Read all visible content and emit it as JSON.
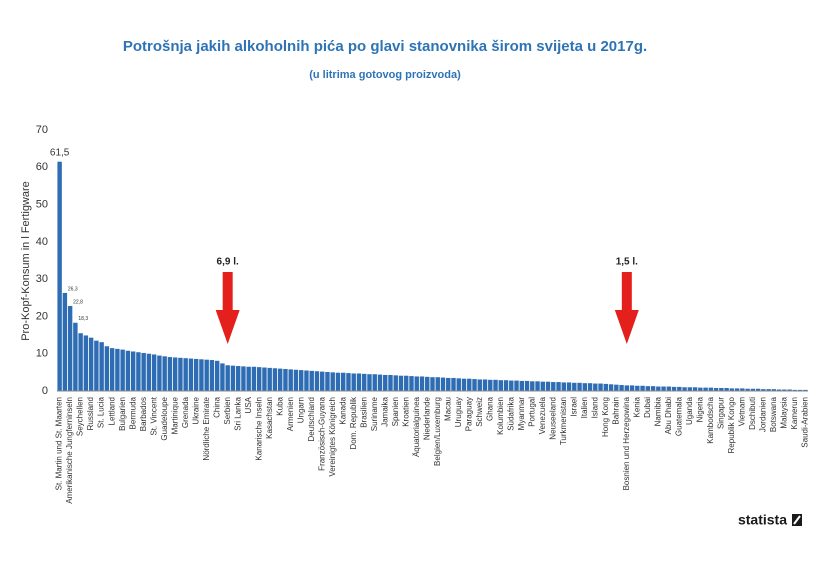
{
  "chart_data": {
    "type": "bar",
    "title": "Potrošnja jakih alkoholnih pića po glavi stanovnika širom svijeta u 2017g.",
    "subtitle": "(u litrima gotovog proizvoda)",
    "y_label": "Pro-Kopf-Konsum in l Fertigware",
    "source": "statista",
    "color": "#2e6db4",
    "ylim": [
      0,
      70
    ],
    "yticks": [
      0,
      10,
      20,
      30,
      40,
      50,
      60,
      70
    ],
    "grid": false,
    "categories": [
      "St. Martin und St. Maarten",
      null,
      "Amerikanische Jungferninseln",
      null,
      "Seychellen",
      null,
      "Russland",
      null,
      "St. Lucia",
      null,
      "Lettland",
      null,
      "Bulgarien",
      null,
      "Bermuda",
      null,
      "Barbados",
      null,
      "St. Vincent",
      null,
      "Guadeloupe",
      null,
      "Martinique",
      null,
      "Grenada",
      null,
      "Ukraine",
      null,
      "Nördliche Emirate",
      null,
      "China",
      null,
      "Serbien",
      null,
      "Sri Lanka",
      null,
      "USA",
      null,
      "Kanarische Inseln",
      null,
      "Kasachstan",
      null,
      "Kuba",
      null,
      "Armenien",
      null,
      "Ungarn",
      null,
      "Deutschland",
      null,
      "Französisch-Guyana",
      null,
      "Vereinigtes Königreich",
      null,
      "Kanada",
      null,
      "Dom. Republik",
      null,
      "Brasilien",
      null,
      "Suriname",
      null,
      "Jamaika",
      null,
      "Spanien",
      null,
      "Kroatien",
      null,
      "Äquatorialguinea",
      null,
      "Niederlande",
      null,
      "Belgien/Luxemburg",
      null,
      "Macau",
      null,
      "Uruguay",
      null,
      "Paraguay",
      null,
      "Schweiz",
      null,
      "Ghana",
      null,
      "Kolumbien",
      null,
      "Südafrika",
      null,
      "Myanmar",
      null,
      "Portugal",
      null,
      "Venezuela",
      null,
      "Neuseeland",
      null,
      "Turkmenistan",
      null,
      "Israel",
      null,
      "Italien",
      null,
      "Island",
      null,
      "Hong Kong",
      null,
      "Bahrain",
      null,
      "Bosnien und Herzegowina",
      null,
      "Kenia",
      null,
      "Dubai",
      null,
      "Namibia",
      null,
      "Abu Dhabi",
      null,
      "Guatemala",
      null,
      "Uganda",
      null,
      "Nigeria",
      null,
      "Kambodscha",
      null,
      "Singapur",
      null,
      "Republik Kongo",
      null,
      "Vietnam",
      null,
      "Dschibuti",
      null,
      "Jordanien",
      null,
      "Botswana",
      null,
      "Malaysia",
      null,
      "Kamerun",
      null,
      "Saudi-Arabien"
    ],
    "values": [
      61.5,
      26.3,
      22.8,
      18.3,
      15.5,
      14.9,
      14.3,
      13.5,
      13.1,
      12.0,
      11.5,
      11.3,
      11.1,
      10.8,
      10.6,
      10.4,
      10.2,
      10.0,
      9.8,
      9.5,
      9.3,
      9.1,
      9.0,
      8.9,
      8.8,
      8.7,
      8.6,
      8.5,
      8.4,
      8.3,
      8.1,
      7.4,
      6.9,
      6.8,
      6.7,
      6.6,
      6.5,
      6.5,
      6.4,
      6.3,
      6.2,
      6.1,
      6.0,
      5.9,
      5.8,
      5.7,
      5.6,
      5.5,
      5.4,
      5.3,
      5.2,
      5.1,
      5.0,
      4.9,
      4.9,
      4.8,
      4.7,
      4.7,
      4.6,
      4.5,
      4.5,
      4.4,
      4.3,
      4.3,
      4.2,
      4.1,
      4.1,
      4.0,
      3.9,
      3.9,
      3.8,
      3.7,
      3.7,
      3.6,
      3.5,
      3.5,
      3.4,
      3.3,
      3.3,
      3.2,
      3.1,
      3.1,
      3.0,
      3.0,
      2.9,
      2.9,
      2.8,
      2.8,
      2.7,
      2.7,
      2.6,
      2.6,
      2.5,
      2.5,
      2.4,
      2.4,
      2.3,
      2.3,
      2.2,
      2.2,
      2.1,
      2.1,
      2.0,
      2.0,
      1.9,
      1.8,
      1.7,
      1.6,
      1.5,
      1.5,
      1.4,
      1.4,
      1.3,
      1.3,
      1.2,
      1.2,
      1.2,
      1.1,
      1.1,
      1.0,
      1.0,
      1.0,
      0.9,
      0.9,
      0.9,
      0.8,
      0.8,
      0.8,
      0.7,
      0.7,
      0.7,
      0.6,
      0.6,
      0.6,
      0.5,
      0.5,
      0.5,
      0.4,
      0.4,
      0.4,
      0.3,
      0.3,
      0.3
    ],
    "value_labels": [
      "61,5",
      "26,3",
      "22,8",
      "18,3",
      null,
      null,
      null,
      null,
      null,
      null,
      null,
      null,
      null,
      null,
      null,
      null,
      null,
      null,
      null,
      null,
      null,
      null,
      null,
      null,
      null,
      null,
      null,
      null,
      null,
      null,
      null,
      null,
      null,
      null,
      null,
      null,
      null,
      null,
      null,
      null,
      null,
      null,
      null,
      null,
      null,
      null,
      null,
      null,
      null,
      null,
      null,
      null,
      null,
      null,
      null,
      null,
      null,
      null,
      null,
      null,
      null,
      null,
      null,
      null,
      null,
      null,
      null,
      null,
      null,
      null,
      null,
      null,
      null,
      null,
      null,
      null,
      null,
      null,
      null,
      null,
      null,
      null,
      null,
      null,
      null,
      null,
      null,
      null,
      null,
      null,
      null,
      null,
      null,
      null,
      null,
      null,
      null,
      null,
      null,
      null,
      null,
      null,
      null,
      null,
      null,
      null,
      null,
      null,
      null,
      null,
      null,
      null,
      null,
      null,
      null,
      null,
      null,
      null,
      null,
      null,
      null,
      null,
      null,
      null,
      null,
      null,
      null,
      null,
      null,
      null,
      null,
      null,
      null,
      null,
      null,
      null,
      null,
      null,
      null,
      null,
      null,
      null,
      null
    ],
    "annotations": [
      {
        "text": "6,9 l.",
        "category": "Serbien"
      },
      {
        "text": "1,5 l.",
        "category": "Bosnien und Herzegowina"
      }
    ]
  }
}
